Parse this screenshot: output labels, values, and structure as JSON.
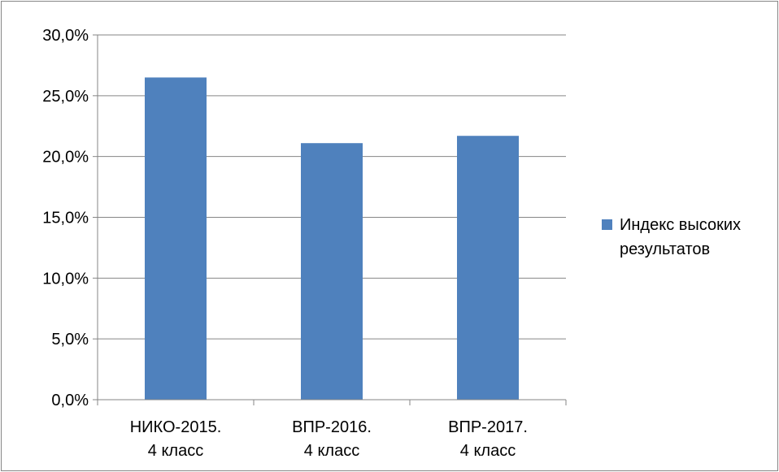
{
  "chart_data": {
    "type": "bar",
    "categories": [
      [
        "НИКО-2015.",
        "4 класс"
      ],
      [
        "ВПР-2016.",
        "4 класс"
      ],
      [
        "ВПР-2017.",
        "4 класс"
      ]
    ],
    "series": [
      {
        "name": [
          "Индекс высоких",
          "результатов"
        ],
        "values": [
          26.5,
          21.1,
          21.7
        ],
        "color": "#4F81BD"
      }
    ],
    "ylim": [
      0,
      30
    ],
    "y_ticks": [
      {
        "value": 0,
        "label": "0,0%"
      },
      {
        "value": 5,
        "label": "5,0%"
      },
      {
        "value": 10,
        "label": "10,0%"
      },
      {
        "value": 15,
        "label": "15,0%"
      },
      {
        "value": 20,
        "label": "20,0%"
      },
      {
        "value": 25,
        "label": "25,0%"
      },
      {
        "value": 30,
        "label": "30,0%"
      }
    ],
    "title": "",
    "xlabel": "",
    "ylabel": "",
    "grid": true,
    "gridline_color": "#868686",
    "legend_position": "right"
  }
}
